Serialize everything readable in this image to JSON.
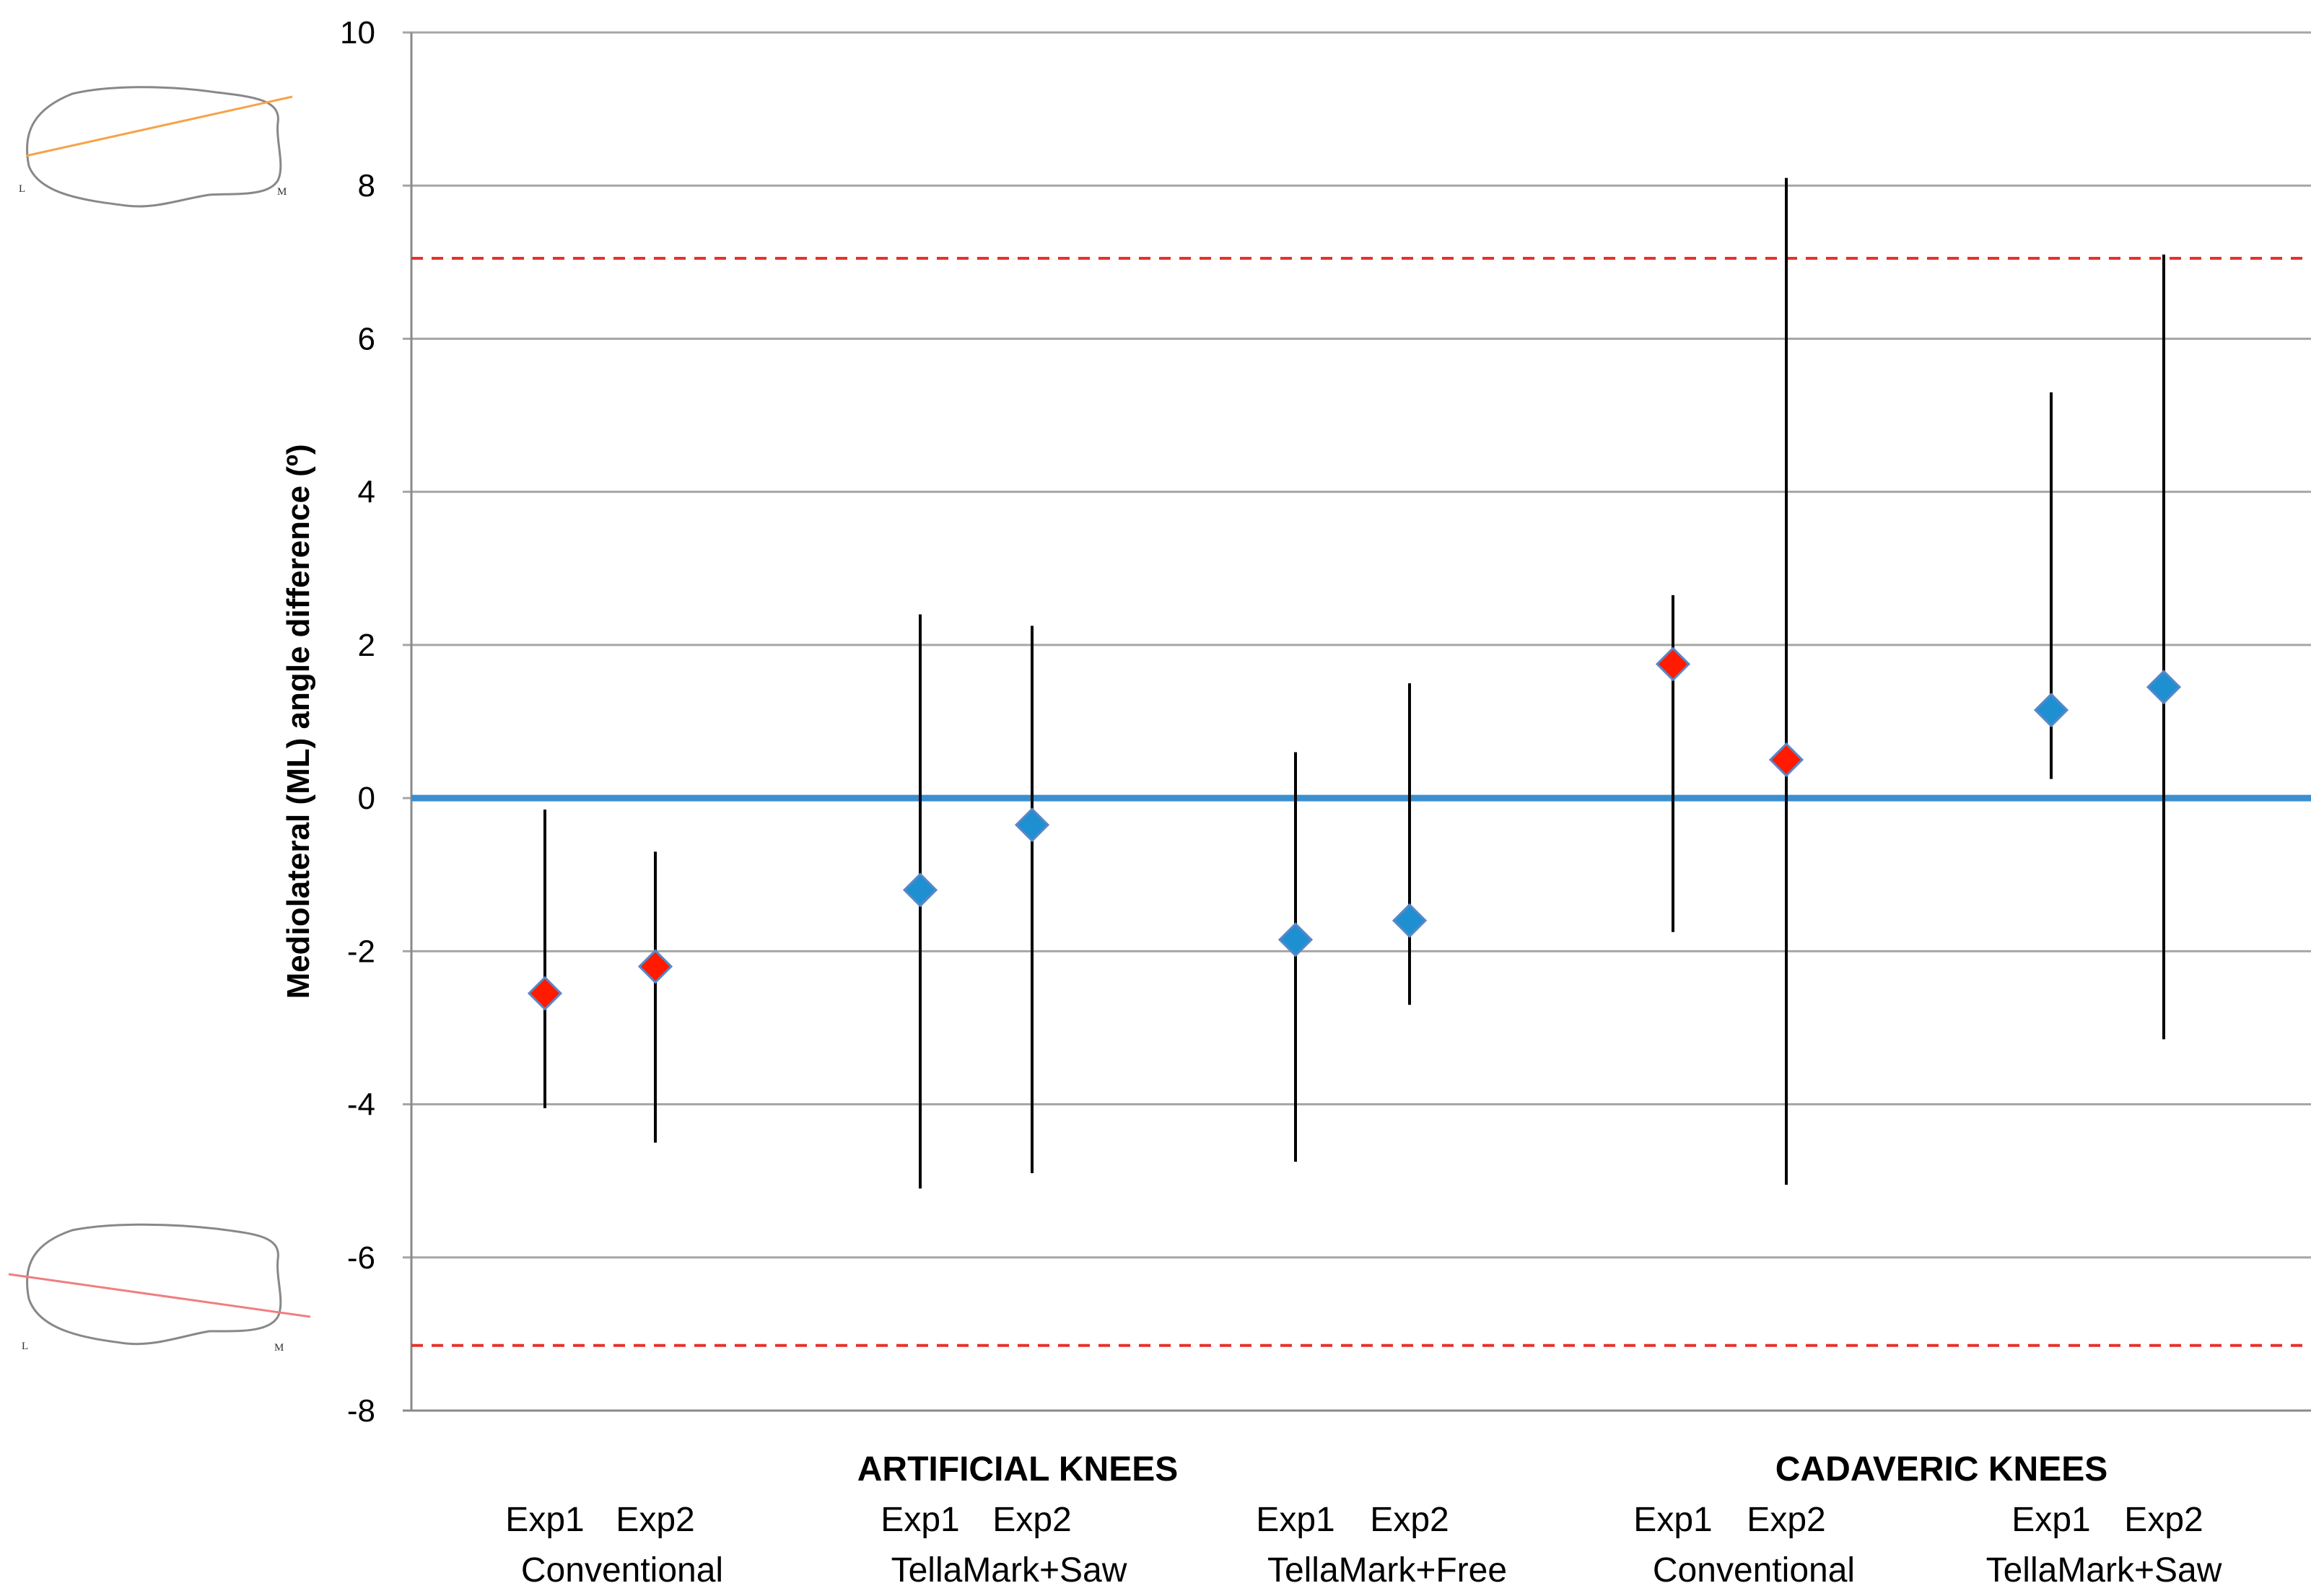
{
  "chart_data": {
    "type": "scatter",
    "subtype": "point-with-range",
    "title": "",
    "xlabel": "",
    "ylabel": "Mediolateral (ML) angle difference (º)",
    "ylim": [
      -8,
      10
    ],
    "yticks": [
      10,
      8,
      6,
      4,
      2,
      0,
      -2,
      -4,
      -6,
      -8
    ],
    "grid": true,
    "reference_lines": [
      {
        "name": "zero",
        "y": 0,
        "color": "#3a8fd0",
        "style": "solid"
      },
      {
        "name": "upper-limit",
        "y": 7.05,
        "color": "#e8312a",
        "style": "dashed"
      },
      {
        "name": "lower-limit",
        "y": -7.15,
        "color": "#e8312a",
        "style": "dashed"
      }
    ],
    "group_labels": [
      "ARTIFICIAL KNEES",
      "CADAVERIC KNEES"
    ],
    "methods": [
      "Conventional",
      "TellaMark+Saw",
      "TellaMark+Free",
      "Conventional",
      "TellaMark+Saw"
    ],
    "points": [
      {
        "group": "artificial",
        "method": "Conventional",
        "exp": "Exp1",
        "mean": -2.55,
        "low": -4.05,
        "high": -0.15,
        "color": "#ff1a00"
      },
      {
        "group": "artificial",
        "method": "Conventional",
        "exp": "Exp2",
        "mean": -2.2,
        "low": -4.5,
        "high": -0.7,
        "color": "#ff1a00"
      },
      {
        "group": "artificial",
        "method": "TellaMark+Saw",
        "exp": "Exp1",
        "mean": -1.2,
        "low": -5.1,
        "high": 2.4,
        "color": "#1e90d2"
      },
      {
        "group": "artificial",
        "method": "TellaMark+Saw",
        "exp": "Exp2",
        "mean": -0.35,
        "low": -4.9,
        "high": 2.25,
        "color": "#1e90d2"
      },
      {
        "group": "artificial",
        "method": "TellaMark+Free",
        "exp": "Exp1",
        "mean": -1.85,
        "low": -4.75,
        "high": 0.6,
        "color": "#1e90d2"
      },
      {
        "group": "artificial",
        "method": "TellaMark+Free",
        "exp": "Exp2",
        "mean": -1.6,
        "low": -2.7,
        "high": 1.5,
        "color": "#1e90d2"
      },
      {
        "group": "cadaveric",
        "method": "Conventional",
        "exp": "Exp1",
        "mean": 1.75,
        "low": -1.75,
        "high": 2.65,
        "color": "#ff1a00"
      },
      {
        "group": "cadaveric",
        "method": "Conventional",
        "exp": "Exp2",
        "mean": 0.5,
        "low": -5.05,
        "high": 8.1,
        "color": "#ff1a00"
      },
      {
        "group": "cadaveric",
        "method": "TellaMark+Saw",
        "exp": "Exp1",
        "mean": 1.15,
        "low": 0.25,
        "high": 5.3,
        "color": "#1e90d2"
      },
      {
        "group": "cadaveric",
        "method": "TellaMark+Saw",
        "exp": "Exp2",
        "mean": 1.45,
        "low": -3.15,
        "high": 7.1,
        "color": "#1e90d2"
      }
    ],
    "inset_labels": {
      "left": "L",
      "right": "M"
    },
    "colors": {
      "axis": "#8a8a8a",
      "grid": "#a6a6a6",
      "errorbar": "#000000",
      "marker_edge": "#5a87c5",
      "inset_outline": "#888888",
      "inset_top_line": "#f5a34a",
      "inset_bottom_line": "#f07e7e"
    }
  }
}
